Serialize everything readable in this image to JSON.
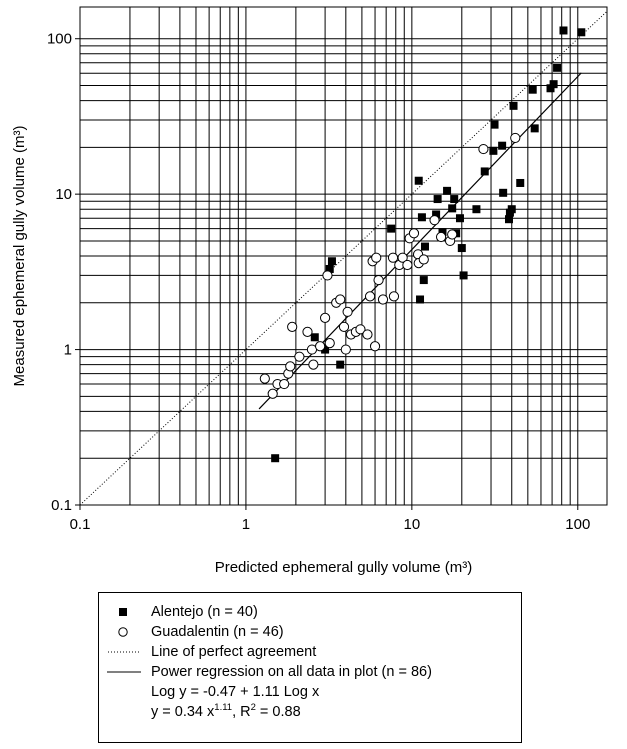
{
  "chart_data": {
    "type": "scatter",
    "xlabel": "Predicted ephemeral gully volume (m³)",
    "ylabel": "Measured ephemeral gully volume (m³)",
    "x_scale": "log",
    "y_scale": "log",
    "xlim": [
      0.1,
      150
    ],
    "ylim": [
      0.1,
      160
    ],
    "x_ticks": [
      "0.1",
      "1",
      "10",
      "100"
    ],
    "y_ticks": [
      "0.1",
      "1",
      "10",
      "100"
    ],
    "grid": true,
    "legend_position": "below",
    "series": [
      {
        "name": "Alentejo (n = 40)",
        "marker": "filled-square",
        "points": [
          [
            1.5,
            0.2
          ],
          [
            3.7,
            0.8
          ],
          [
            2.6,
            1.2
          ],
          [
            3.0,
            1.0
          ],
          [
            3.2,
            3.3
          ],
          [
            3.3,
            3.7
          ],
          [
            7.5,
            6.0
          ],
          [
            11.0,
            12.2
          ],
          [
            11.2,
            2.1
          ],
          [
            11.5,
            7.1
          ],
          [
            11.8,
            2.8
          ],
          [
            12.0,
            4.6
          ],
          [
            14.0,
            7.4
          ],
          [
            14.3,
            9.3
          ],
          [
            15.3,
            5.7
          ],
          [
            16.3,
            10.5
          ],
          [
            17.5,
            8.1
          ],
          [
            18.0,
            9.3
          ],
          [
            19.5,
            7.0
          ],
          [
            18.5,
            5.6
          ],
          [
            20.0,
            4.5
          ],
          [
            20.5,
            3.0
          ],
          [
            24.5,
            8.0
          ],
          [
            27.5,
            14.0
          ],
          [
            31.0,
            19.0
          ],
          [
            31.5,
            28.0
          ],
          [
            35.0,
            20.5
          ],
          [
            35.5,
            10.2
          ],
          [
            38.5,
            6.9
          ],
          [
            39.0,
            7.6
          ],
          [
            40.0,
            8.0
          ],
          [
            41.0,
            37.0
          ],
          [
            45.0,
            11.8
          ],
          [
            53.5,
            47.0
          ],
          [
            55.0,
            26.5
          ],
          [
            68.5,
            48.0
          ],
          [
            71.5,
            51.0
          ],
          [
            75.0,
            65.0
          ],
          [
            82.0,
            113.0
          ],
          [
            105.0,
            110.0
          ]
        ]
      },
      {
        "name": "Guadalentin (n = 46)",
        "marker": "open-circle",
        "points": [
          [
            1.3,
            0.65
          ],
          [
            1.45,
            0.52
          ],
          [
            1.55,
            0.6
          ],
          [
            1.7,
            0.6
          ],
          [
            1.8,
            0.7
          ],
          [
            1.85,
            0.78
          ],
          [
            1.9,
            1.4
          ],
          [
            2.1,
            0.9
          ],
          [
            2.35,
            1.3
          ],
          [
            2.5,
            1.0
          ],
          [
            2.55,
            0.8
          ],
          [
            2.8,
            1.05
          ],
          [
            3.0,
            1.6
          ],
          [
            3.1,
            3.0
          ],
          [
            3.2,
            1.1
          ],
          [
            3.5,
            2.0
          ],
          [
            3.7,
            2.1
          ],
          [
            3.9,
            1.4
          ],
          [
            4.0,
            1.0
          ],
          [
            4.1,
            1.75
          ],
          [
            4.3,
            1.25
          ],
          [
            4.6,
            1.3
          ],
          [
            4.9,
            1.35
          ],
          [
            5.4,
            1.25
          ],
          [
            5.6,
            2.2
          ],
          [
            5.8,
            3.7
          ],
          [
            6.0,
            1.05
          ],
          [
            6.1,
            3.9
          ],
          [
            6.3,
            2.8
          ],
          [
            6.7,
            2.1
          ],
          [
            7.8,
            2.2
          ],
          [
            7.7,
            3.9
          ],
          [
            8.4,
            3.5
          ],
          [
            8.8,
            3.9
          ],
          [
            9.4,
            3.5
          ],
          [
            9.7,
            5.2
          ],
          [
            10.3,
            5.6
          ],
          [
            10.9,
            4.1
          ],
          [
            11.0,
            3.6
          ],
          [
            11.8,
            3.8
          ],
          [
            13.7,
            6.8
          ],
          [
            15.0,
            5.3
          ],
          [
            17.0,
            5.0
          ],
          [
            17.5,
            5.5
          ],
          [
            27.0,
            19.5
          ],
          [
            42.0,
            23.0
          ]
        ]
      },
      {
        "name": "Line of perfect agreement",
        "style": "dotted",
        "points": [
          [
            0.1,
            0.1
          ],
          [
            150,
            150
          ]
        ]
      },
      {
        "name": "Power regression on all data in plot (n = 86)",
        "style": "solid",
        "equation": "y = 0.34 x^1.11",
        "points": [
          [
            1.2,
            0.415
          ],
          [
            105,
            60.3
          ]
        ]
      }
    ]
  },
  "legend": {
    "alentejo": "Alentejo (n = 40)",
    "guadalentin": "Guadalentin (n = 46)",
    "perfect": "Line of perfect agreement",
    "regression": "Power regression on all data in plot (n = 86)",
    "eq_log": "Log y = -0.47 + 1.11 Log x",
    "eq_power_prefix": "y = 0.34 x",
    "eq_power_exp": "1.11",
    "eq_r2_prefix": ",   R",
    "eq_r2_exp": "2",
    "eq_r2_value": " = 0.88"
  }
}
